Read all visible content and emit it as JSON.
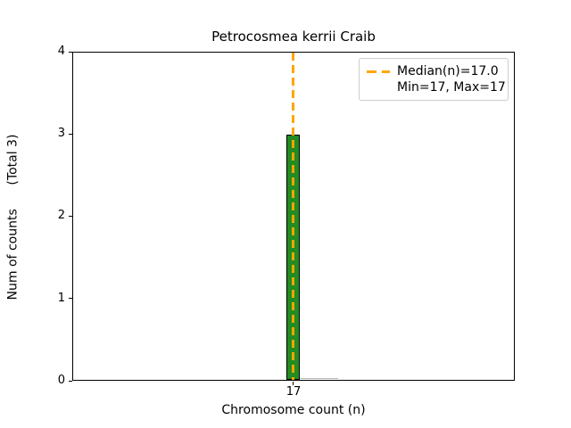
{
  "chart_data": {
    "type": "bar",
    "title": "Petrocosmea kerrii Craib",
    "xlabel": "Chromosome count (n)",
    "ylabel": "Num of counts      (Total 3)",
    "total_counts": 3,
    "x": [
      17
    ],
    "values": [
      3
    ],
    "xticks": [
      "17"
    ],
    "yticks": [
      "0",
      "1",
      "2",
      "3",
      "4"
    ],
    "ylim": [
      0,
      4
    ],
    "grid": false,
    "bar_color": "#228B22",
    "bar_edge_color": "#000000",
    "median": {
      "value": 17.0,
      "line_color": "#FFA500",
      "line_style": "dashed"
    },
    "min": 17,
    "max": 17,
    "legend": {
      "position": "upper right",
      "entries": [
        "Median(n)=17.0",
        "Min=17, Max=17"
      ]
    }
  }
}
